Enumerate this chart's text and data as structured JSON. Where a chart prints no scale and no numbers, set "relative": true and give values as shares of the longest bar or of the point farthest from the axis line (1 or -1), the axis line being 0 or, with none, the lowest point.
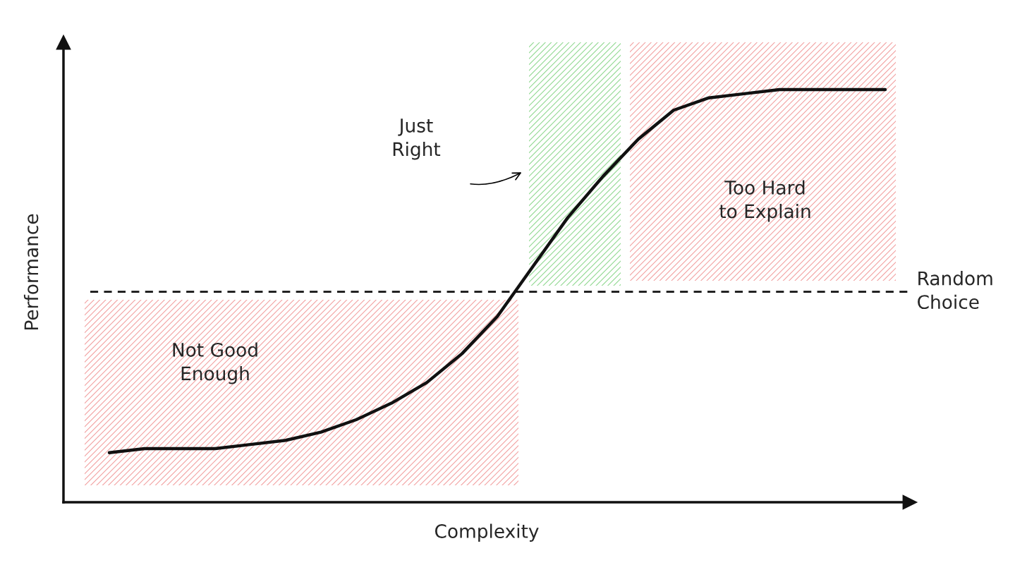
{
  "chart_data": {
    "type": "line",
    "relative": true,
    "xlabel": "Complexity",
    "ylabel": "Performance",
    "categories": [
      null,
      null,
      null,
      null,
      null,
      null,
      null,
      null,
      null,
      null,
      null,
      null,
      null,
      null,
      null,
      null,
      null,
      null,
      null,
      null,
      null,
      null,
      null
    ],
    "series": [
      {
        "color": "#111111",
        "values": [
          0.12,
          0.13,
          0.13,
          0.13,
          0.14,
          0.15,
          0.17,
          0.2,
          0.24,
          0.29,
          0.36,
          0.45,
          0.57,
          0.69,
          0.79,
          0.88,
          0.95,
          0.98,
          0.99,
          1,
          1,
          1,
          1
        ]
      }
    ],
    "ref_lines": [
      {
        "axis": "y",
        "value": 0.51,
        "label": "Random\nChoice",
        "color": "#111111",
        "line_style": "dashed"
      }
    ],
    "annotations": [
      "Just\nRight",
      "Too Hard\nto Explain",
      "Not Good\nEnough"
    ],
    "legend": false,
    "marker": "none",
    "line_style": "solid"
  }
}
